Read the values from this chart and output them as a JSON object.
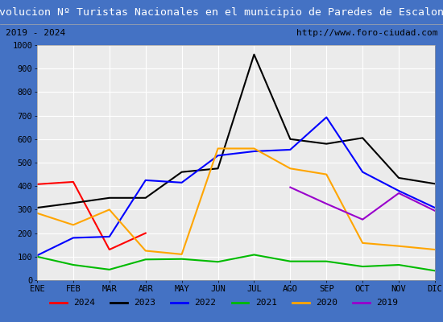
{
  "title": "Evolucion Nº Turistas Nacionales en el municipio de Paredes de Escalona",
  "subtitle_left": "2019 - 2024",
  "subtitle_right": "http://www.foro-ciudad.com",
  "months": [
    "ENE",
    "FEB",
    "MAR",
    "ABR",
    "MAY",
    "JUN",
    "JUL",
    "AGO",
    "SEP",
    "OCT",
    "NOV",
    "DIC"
  ],
  "ylim": [
    0,
    1000
  ],
  "yticks": [
    0,
    100,
    200,
    300,
    400,
    500,
    600,
    700,
    800,
    900,
    1000
  ],
  "series": {
    "2024": {
      "color": "#ff0000",
      "values": [
        408,
        418,
        130,
        200,
        null,
        null,
        null,
        null,
        null,
        null,
        null,
        null
      ]
    },
    "2023": {
      "color": "#000000",
      "values": [
        308,
        328,
        350,
        350,
        460,
        475,
        960,
        600,
        580,
        605,
        435,
        410
      ]
    },
    "2022": {
      "color": "#0000ff",
      "values": [
        105,
        180,
        185,
        425,
        415,
        530,
        548,
        555,
        693,
        460,
        380,
        308
      ]
    },
    "2021": {
      "color": "#00bb00",
      "values": [
        100,
        65,
        45,
        88,
        90,
        78,
        108,
        80,
        80,
        58,
        65,
        40
      ]
    },
    "2020": {
      "color": "#ffa500",
      "values": [
        285,
        235,
        300,
        125,
        110,
        560,
        560,
        475,
        450,
        158,
        145,
        130
      ]
    },
    "2019": {
      "color": "#9900cc",
      "values": [
        null,
        null,
        null,
        null,
        null,
        null,
        null,
        395,
        325,
        258,
        370,
        295
      ]
    }
  },
  "title_bg_color": "#4472c4",
  "title_font_color": "#ffffff",
  "plot_bg_color": "#ebebeb",
  "grid_color": "#ffffff",
  "outer_bg_color": "#4472c4",
  "subtitle_bg_color": "#f2f2f2",
  "legend_order": [
    "2024",
    "2023",
    "2022",
    "2021",
    "2020",
    "2019"
  ],
  "title_fontsize": 9.5,
  "subtitle_fontsize": 8.0,
  "tick_fontsize": 7.5,
  "legend_fontsize": 8.0
}
